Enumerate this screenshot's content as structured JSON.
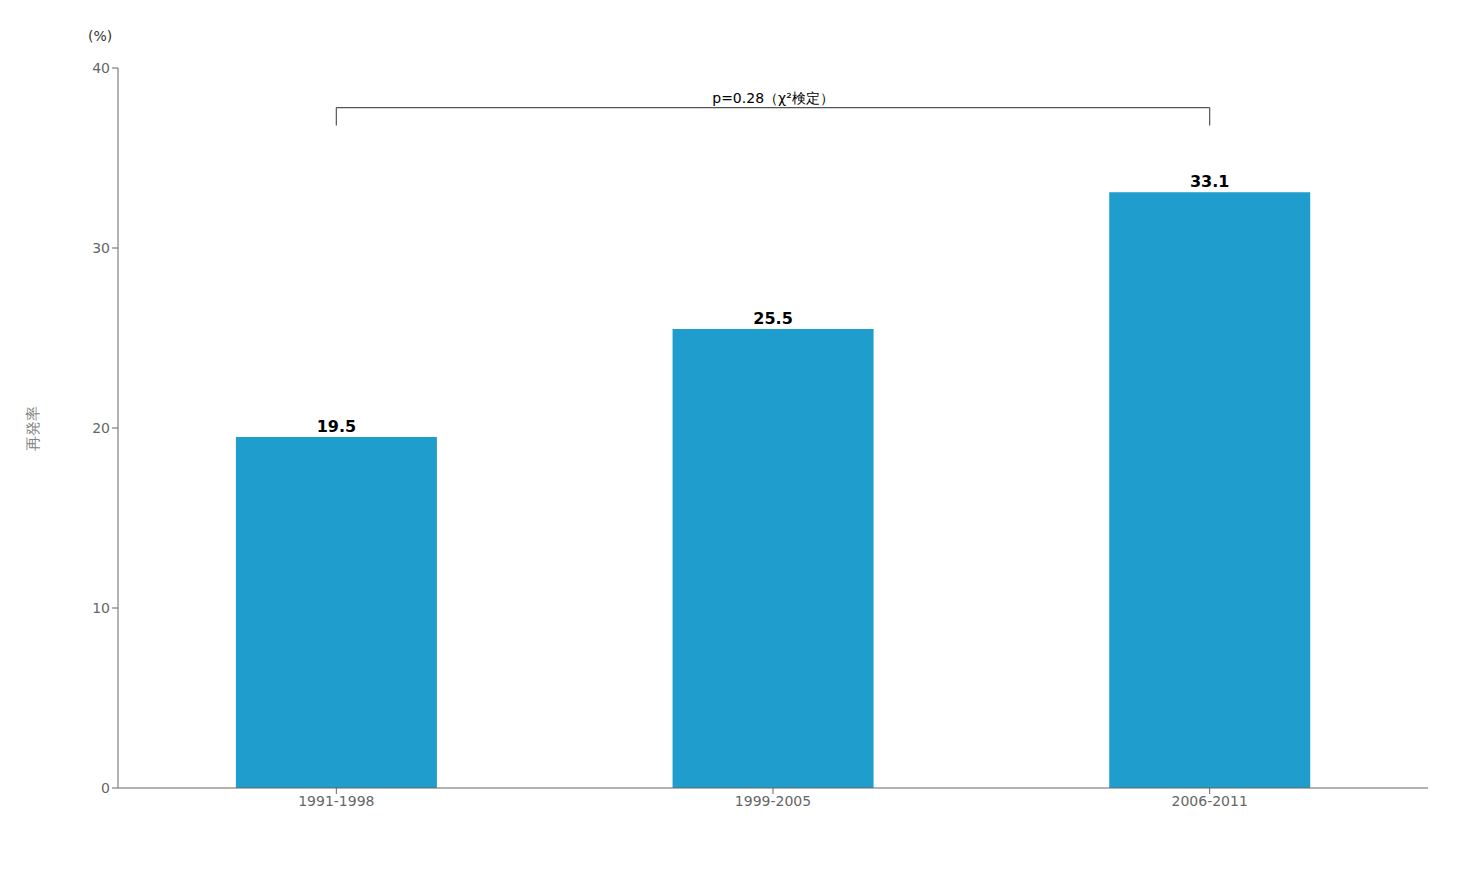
{
  "chart_data": {
    "type": "bar",
    "categories": [
      "1991-1998",
      "1999-2005",
      "2006-2011"
    ],
    "values": [
      19.5,
      25.5,
      33.1
    ],
    "color": "#1f9dcc",
    "ylabel": "再発率",
    "ylim": [
      0,
      40
    ],
    "yticks": [
      0,
      10,
      20,
      30,
      40
    ],
    "grid": false,
    "data_labels": true,
    "annotations": [
      {
        "text": "(%)"
      },
      {
        "text": "p=0.28（χ²検定）",
        "bracket": {
          "from": "1991-1998",
          "to": "2006-2011",
          "y": 37.8,
          "tick_height": 1.0
        }
      }
    ]
  }
}
